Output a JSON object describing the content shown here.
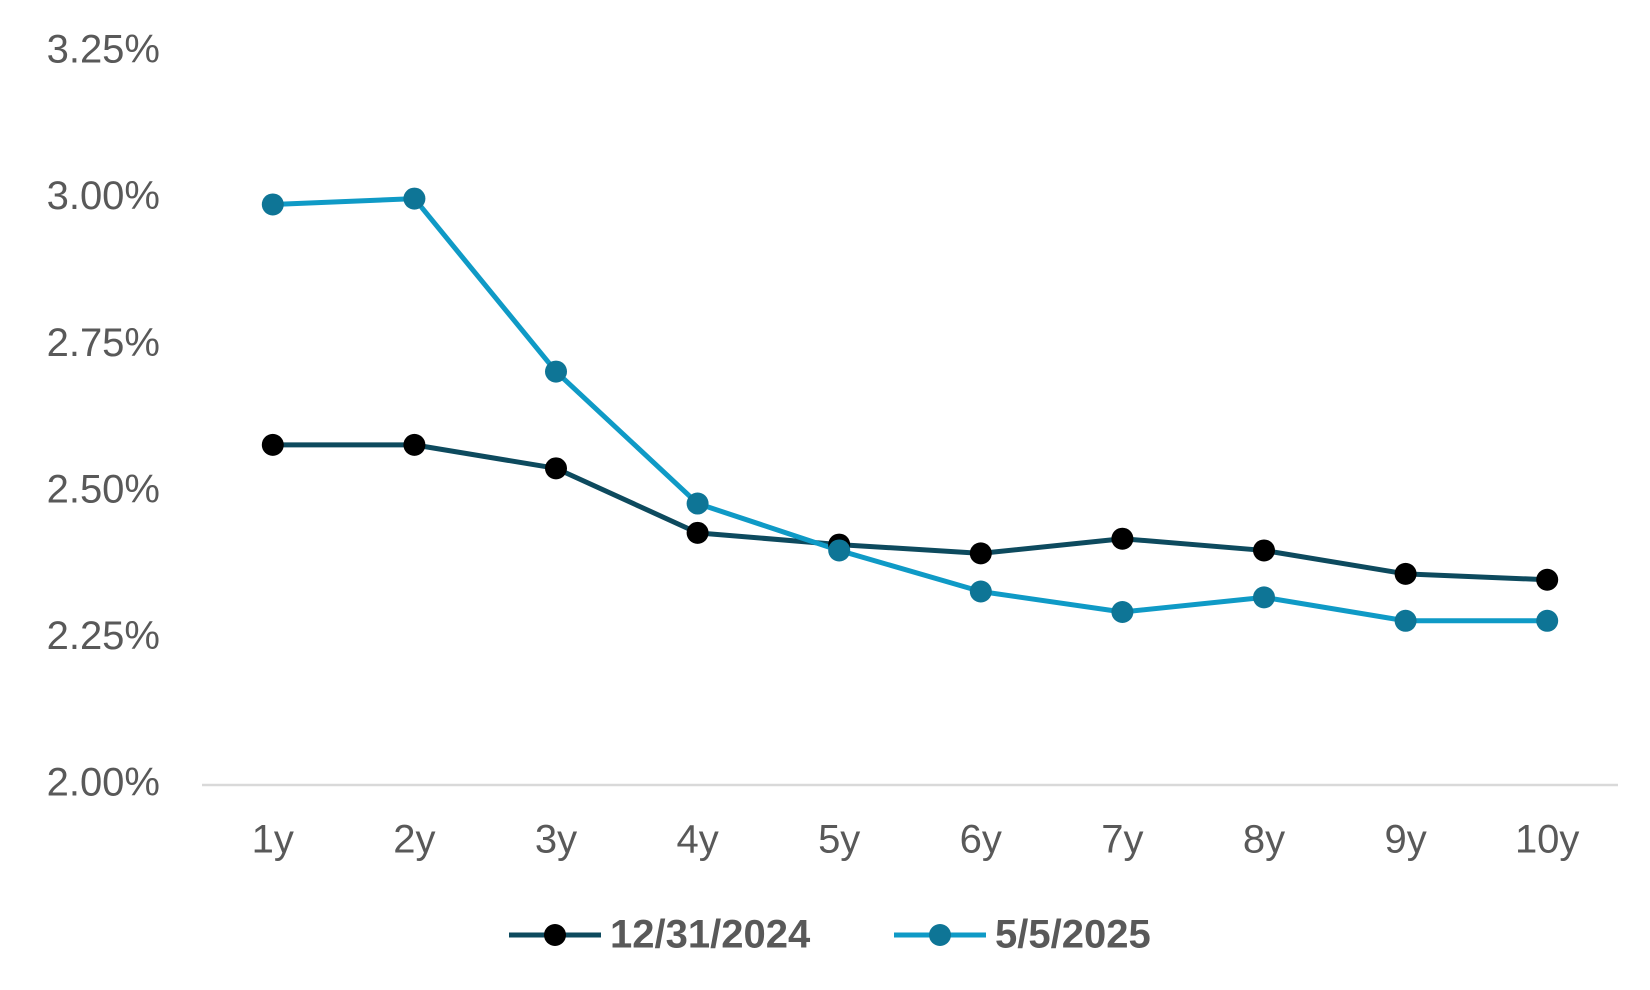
{
  "chart_data": {
    "type": "line",
    "categories": [
      "1y",
      "2y",
      "3y",
      "4y",
      "5y",
      "6y",
      "7y",
      "8y",
      "9y",
      "10y"
    ],
    "series": [
      {
        "name": "12/31/2024",
        "color": "#0d4a5e",
        "marker_color": "#000000",
        "values": [
          2.58,
          2.58,
          2.54,
          2.43,
          2.41,
          2.395,
          2.42,
          2.4,
          2.36,
          2.35
        ]
      },
      {
        "name": "5/5/2025",
        "color": "#0f9ac6",
        "marker_color": "#0e7596",
        "values": [
          2.99,
          3.0,
          2.705,
          2.48,
          2.4,
          2.33,
          2.295,
          2.32,
          2.28,
          2.28
        ]
      }
    ],
    "ylim": [
      2.0,
      3.25
    ],
    "yticks": [
      {
        "value": 2.0,
        "label": "2.00%"
      },
      {
        "value": 2.25,
        "label": "2.25%"
      },
      {
        "value": 2.5,
        "label": "2.50%"
      },
      {
        "value": 2.75,
        "label": "2.75%"
      },
      {
        "value": 3.0,
        "label": "3.00%"
      },
      {
        "value": 3.25,
        "label": "3.25%"
      }
    ],
    "grid": false,
    "legend": "bottom"
  }
}
